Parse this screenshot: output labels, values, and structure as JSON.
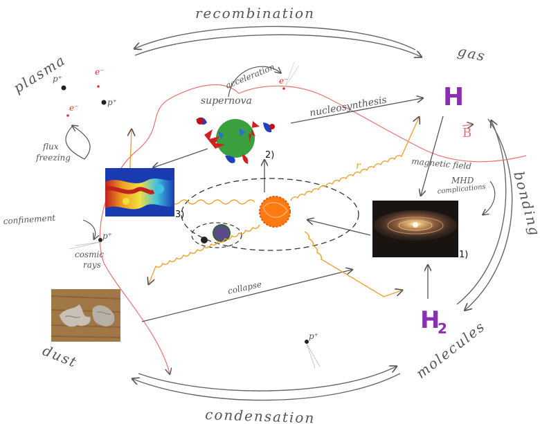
{
  "cycle_labels": {
    "recombination": "recombination",
    "gas": "gas",
    "plasma": "plasma",
    "dust": "dust",
    "condensation": "condensation",
    "molecules": "molecules",
    "bonding": "bonding"
  },
  "process_labels": {
    "acceleration": "acceleration",
    "supernova": "supernova",
    "nucleosynthesis": "nucleosynthesis",
    "magnetic_field": "magnetic field",
    "mhd_line1": "MHD",
    "mhd_line2": "complications",
    "flux_line1": "flux",
    "flux_line2": "freezing",
    "confinement": "confinement",
    "cosmic_line1": "cosmic",
    "cosmic_line2": "rays",
    "collapse": "collapse",
    "radiation": "r"
  },
  "particles": {
    "proton": "p⁺",
    "electron": "e⁻"
  },
  "elements": {
    "hydrogen": "H",
    "hydrogen2": "H",
    "subscript2": "2",
    "b_field": "B"
  },
  "image_captions": {
    "disk": "1)",
    "supernova": "2)",
    "turbulence": "3)"
  },
  "colors": {
    "pencil": "#555555",
    "hydrogen": "#8a2fb0",
    "field_line": "#e87070",
    "radiation": "#f0a030",
    "star": "#ff7a10",
    "electron": "#e03030"
  }
}
